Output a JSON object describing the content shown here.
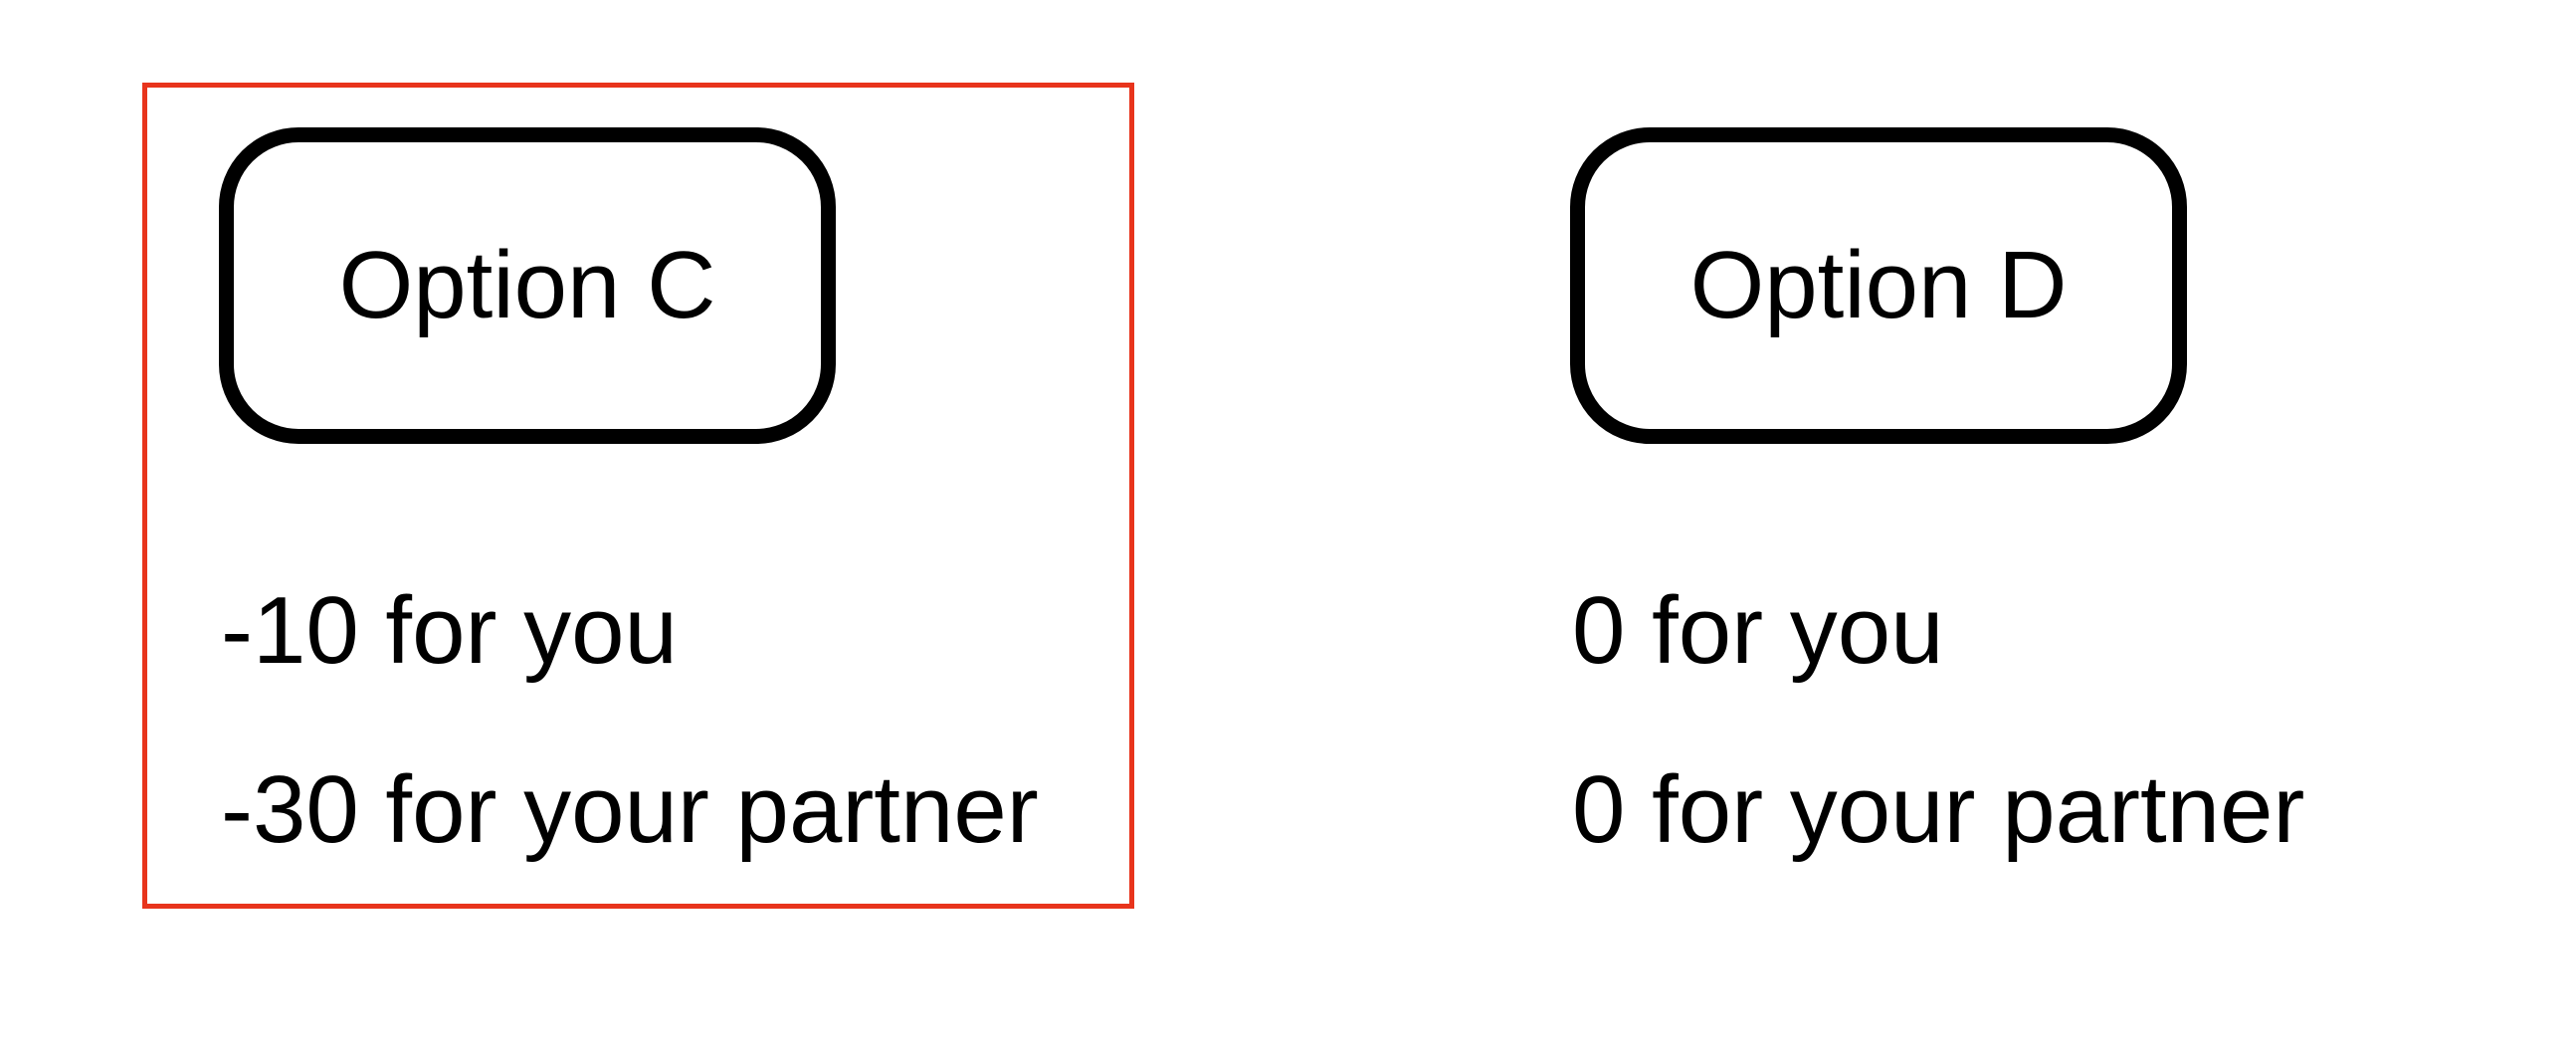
{
  "selection": {
    "highlight_color": "#e8341c",
    "selected_option": "Option C"
  },
  "options": [
    {
      "label": "Option C",
      "payoff_you": "-10 for you",
      "payoff_partner": "-30 for your partner"
    },
    {
      "label": "Option D",
      "payoff_you": "0 for you",
      "payoff_partner": "0 for your partner"
    }
  ]
}
